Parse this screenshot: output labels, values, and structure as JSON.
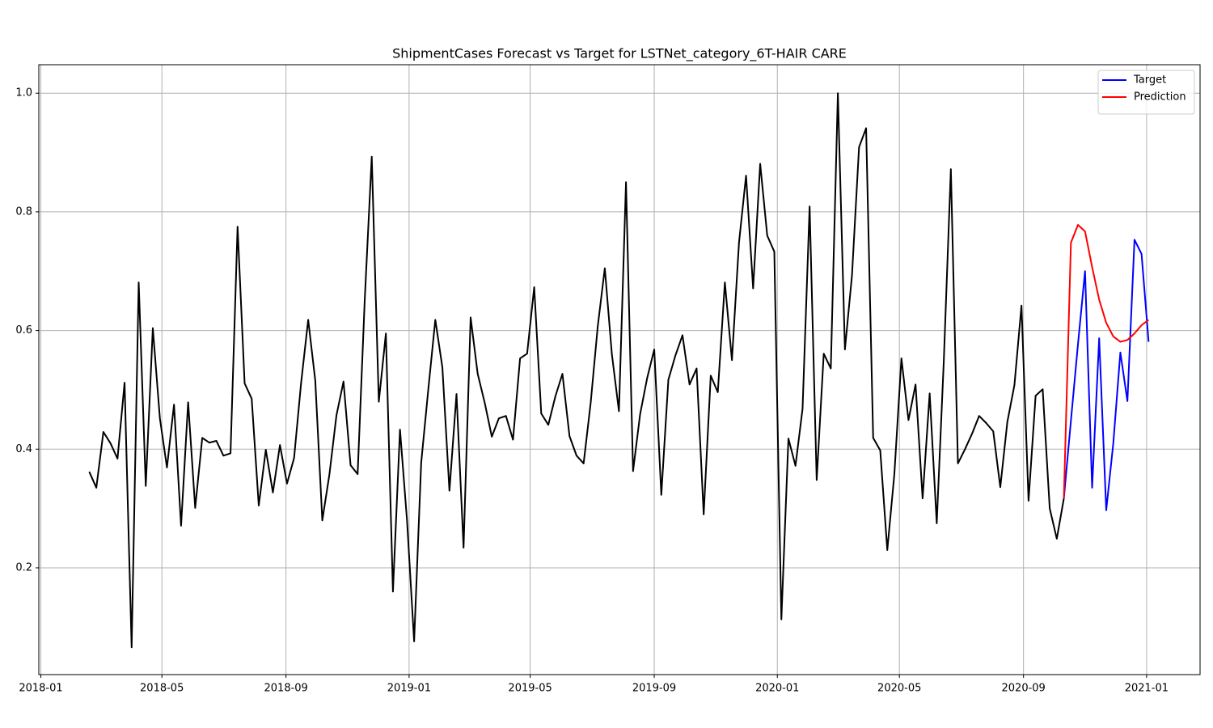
{
  "chart_data": {
    "type": "line",
    "title": "ShipmentCases Forecast vs Target for LSTNet_category_6T-HAIR CARE",
    "series": [
      {
        "color": "#000000",
        "x": [
          "2018-02-18",
          "2018-02-25",
          "2018-03-04",
          "2018-03-11",
          "2018-03-18",
          "2018-03-25",
          "2018-04-01",
          "2018-04-08",
          "2018-04-15",
          "2018-04-22",
          "2018-04-29",
          "2018-05-06",
          "2018-05-13",
          "2018-05-20",
          "2018-05-27",
          "2018-06-03",
          "2018-06-10",
          "2018-06-17",
          "2018-06-24",
          "2018-07-01",
          "2018-07-08",
          "2018-07-15",
          "2018-07-22",
          "2018-07-29",
          "2018-08-05",
          "2018-08-12",
          "2018-08-19",
          "2018-08-26",
          "2018-09-02",
          "2018-09-09",
          "2018-09-16",
          "2018-09-23",
          "2018-09-30",
          "2018-10-07",
          "2018-10-14",
          "2018-10-21",
          "2018-10-28",
          "2018-11-04",
          "2018-11-11",
          "2018-11-18",
          "2018-11-25",
          "2018-12-02",
          "2018-12-09",
          "2018-12-16",
          "2018-12-23",
          "2018-12-30",
          "2019-01-06",
          "2019-01-13",
          "2019-01-20",
          "2019-01-27",
          "2019-02-03",
          "2019-02-10",
          "2019-02-17",
          "2019-02-24",
          "2019-03-03",
          "2019-03-10",
          "2019-03-17",
          "2019-03-24",
          "2019-03-31",
          "2019-04-07",
          "2019-04-14",
          "2019-04-21",
          "2019-04-28",
          "2019-05-05",
          "2019-05-12",
          "2019-05-19",
          "2019-05-26",
          "2019-06-02",
          "2019-06-09",
          "2019-06-16",
          "2019-06-23",
          "2019-06-30",
          "2019-07-07",
          "2019-07-14",
          "2019-07-21",
          "2019-07-28",
          "2019-08-04",
          "2019-08-11",
          "2019-08-18",
          "2019-08-25",
          "2019-09-01",
          "2019-09-08",
          "2019-09-15",
          "2019-09-22",
          "2019-09-29",
          "2019-10-06",
          "2019-10-13",
          "2019-10-20",
          "2019-10-27",
          "2019-11-03",
          "2019-11-10",
          "2019-11-17",
          "2019-11-24",
          "2019-12-01",
          "2019-12-08",
          "2019-12-15",
          "2019-12-22",
          "2019-12-29",
          "2020-01-05",
          "2020-01-12",
          "2020-01-19",
          "2020-01-26",
          "2020-02-02",
          "2020-02-09",
          "2020-02-16",
          "2020-02-23",
          "2020-03-01",
          "2020-03-08",
          "2020-03-15",
          "2020-03-22",
          "2020-03-29",
          "2020-04-05",
          "2020-04-12",
          "2020-04-19",
          "2020-04-26",
          "2020-05-03",
          "2020-05-10",
          "2020-05-17",
          "2020-05-24",
          "2020-05-31",
          "2020-06-07",
          "2020-06-14",
          "2020-06-21",
          "2020-06-28",
          "2020-07-05",
          "2020-07-12",
          "2020-07-19",
          "2020-07-26",
          "2020-08-02",
          "2020-08-09",
          "2020-08-16",
          "2020-08-23",
          "2020-08-30",
          "2020-09-06",
          "2020-09-13",
          "2020-09-20",
          "2020-09-27",
          "2020-10-04",
          "2020-10-11"
        ],
        "values": [
          0.362,
          0.335,
          0.429,
          0.41,
          0.384,
          0.512,
          0.066,
          0.681,
          0.338,
          0.604,
          0.452,
          0.369,
          0.475,
          0.271,
          0.479,
          0.301,
          0.419,
          0.411,
          0.414,
          0.389,
          0.393,
          0.775,
          0.511,
          0.485,
          0.305,
          0.399,
          0.327,
          0.407,
          0.342,
          0.385,
          0.512,
          0.618,
          0.516,
          0.28,
          0.357,
          0.457,
          0.514,
          0.373,
          0.358,
          0.65,
          0.893,
          0.48,
          0.595,
          0.16,
          0.433,
          0.279,
          0.076,
          0.377,
          0.5,
          0.618,
          0.538,
          0.33,
          0.493,
          0.234,
          0.622,
          0.527,
          0.478,
          0.421,
          0.452,
          0.456,
          0.416,
          0.553,
          0.561,
          0.673,
          0.46,
          0.441,
          0.489,
          0.527,
          0.422,
          0.389,
          0.376,
          0.478,
          0.607,
          0.705,
          0.56,
          0.464,
          0.85,
          0.363,
          0.459,
          0.52,
          0.568,
          0.323,
          0.517,
          0.558,
          0.592,
          0.509,
          0.536,
          0.29,
          0.524,
          0.496,
          0.681,
          0.55,
          0.748,
          0.861,
          0.671,
          0.881,
          0.76,
          0.733,
          0.113,
          0.418,
          0.372,
          0.468,
          0.809,
          0.348,
          0.561,
          0.536,
          1.0,
          0.568,
          0.693,
          0.909,
          0.941,
          0.419,
          0.398,
          0.23,
          0.358,
          0.553,
          0.449,
          0.509,
          0.317,
          0.494,
          0.275,
          0.549,
          0.872,
          0.376,
          0.4,
          0.426,
          0.456,
          0.444,
          0.43,
          0.336,
          0.446,
          0.508,
          0.642,
          0.313,
          0.49,
          0.501,
          0.3,
          0.249,
          0.317
        ]
      },
      {
        "name": "Target",
        "color": "#0000ff",
        "x": [
          "2020-10-11",
          "2020-10-18",
          "2020-10-25",
          "2020-11-01",
          "2020-11-08",
          "2020-11-15",
          "2020-11-22",
          "2020-11-29",
          "2020-12-06",
          "2020-12-13",
          "2020-12-20",
          "2020-12-27",
          "2021-01-03"
        ],
        "values": [
          0.317,
          0.448,
          0.577,
          0.7,
          0.335,
          0.587,
          0.297,
          0.41,
          0.563,
          0.481,
          0.753,
          0.729,
          0.581
        ]
      },
      {
        "name": "Prediction",
        "color": "#ff0000",
        "x": [
          "2020-10-11",
          "2020-10-18",
          "2020-10-25",
          "2020-11-01",
          "2020-11-08",
          "2020-11-15",
          "2020-11-22",
          "2020-11-29",
          "2020-12-06",
          "2020-12-13",
          "2020-12-20",
          "2020-12-27",
          "2021-01-03"
        ],
        "values": [
          0.317,
          0.748,
          0.778,
          0.767,
          0.707,
          0.652,
          0.613,
          0.59,
          0.581,
          0.584,
          0.595,
          0.609,
          0.618
        ]
      }
    ],
    "xlim": [
      "2017-12-30",
      "2021-02-23"
    ],
    "xticks": [
      "2018-01",
      "2018-05",
      "2018-09",
      "2019-01",
      "2019-05",
      "2019-09",
      "2020-01",
      "2020-05",
      "2020-09",
      "2021-01"
    ],
    "ylim": [
      0.02,
      1.048
    ],
    "yticks": [
      0.2,
      0.4,
      0.6,
      0.8,
      {
        "value": 1,
        "label": "1.0"
      }
    ],
    "grid": true,
    "legend": "upper right"
  }
}
